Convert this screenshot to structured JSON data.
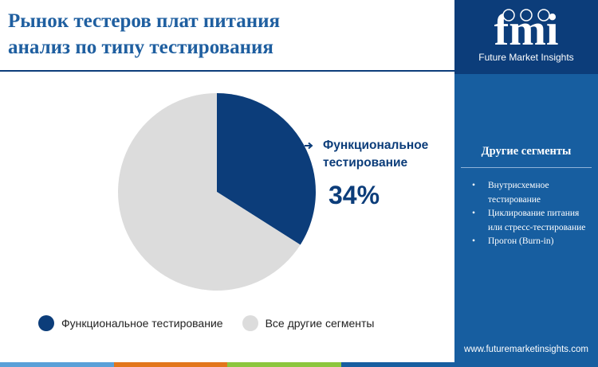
{
  "title": {
    "line1": "Рынок тестеров плат питания",
    "line2": "анализ по типу тестирования"
  },
  "chart_data": {
    "type": "pie",
    "slices": [
      {
        "name": "Функциональное тестирование",
        "value": 34,
        "color": "#0c3d7a"
      },
      {
        "name": "Все другие сегменты",
        "value": 66,
        "color": "#dcdcdc"
      }
    ]
  },
  "callout": {
    "label_line1": "Функциональное",
    "label_line2": "тестирование",
    "value": "34%"
  },
  "legend": [
    {
      "label": "Функциональное тестирование",
      "color": "#0c3d7a"
    },
    {
      "label": "Все другие сегменты",
      "color": "#dcdcdc"
    }
  ],
  "sidebar": {
    "logo_text": "fmi",
    "logo_subtitle": "Future Market Insights",
    "segments_title": "Другие сегменты",
    "segments": [
      "Внутрисхемное тестирование",
      "Циклирование питания или стресс-тестирование",
      "Прогон (Burn-in)"
    ],
    "website": "www.futuremarketinsights.com"
  },
  "colors": {
    "accent_navy": "#0c3d7a",
    "title_blue": "#1f5fa0",
    "sidebar_blue": "#175ea0",
    "bar_colors": [
      "#5aa0d8",
      "#e2761b",
      "#8cc63e",
      "#175ea0"
    ]
  },
  "icons": [
    "arrow-right-icon",
    "fmi-logo",
    "globe-icon"
  ]
}
